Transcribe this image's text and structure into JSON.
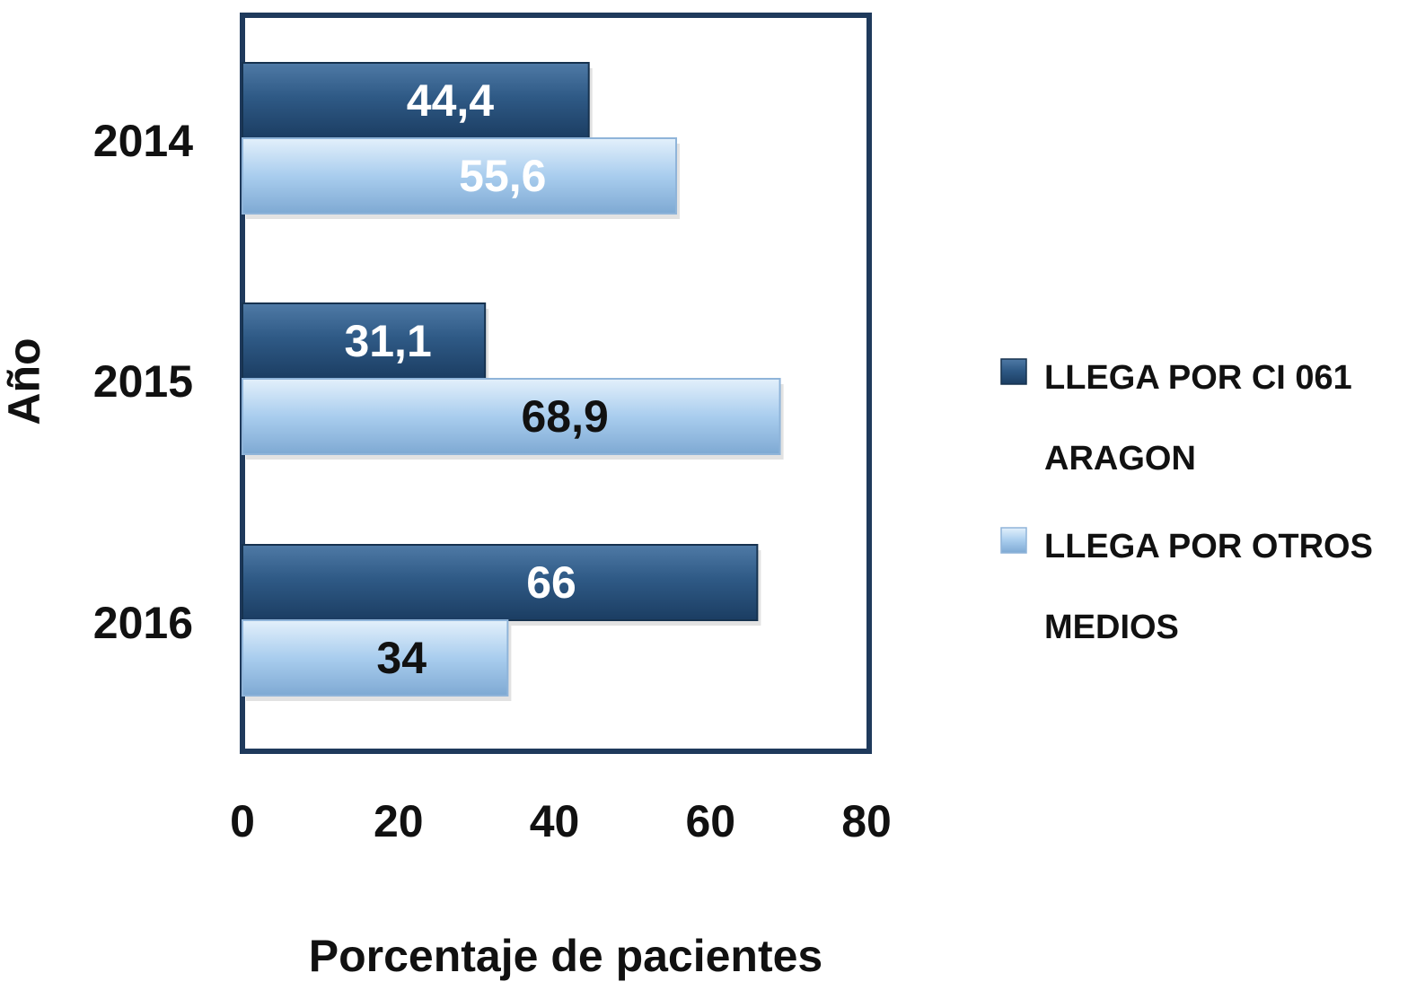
{
  "chart_data": {
    "type": "bar",
    "orientation": "horizontal",
    "categories": [
      "2014",
      "2015",
      "2016"
    ],
    "series": [
      {
        "name": "LLEGA POR CI 061 ARAGON",
        "legend_lines": [
          "LLEGA POR CI 061",
          "ARAGON"
        ],
        "values": [
          44.4,
          31.1,
          66
        ],
        "labels": [
          "44,4",
          "31,1",
          "66"
        ],
        "color": "#2d5580",
        "label_colors": [
          "#ffffff",
          "#ffffff",
          "#ffffff"
        ]
      },
      {
        "name": "LLEGA POR OTROS MEDIOS",
        "legend_lines": [
          "LLEGA POR OTROS",
          "MEDIOS"
        ],
        "values": [
          55.6,
          68.9,
          34
        ],
        "labels": [
          "55,6",
          "68,9",
          "34"
        ],
        "color": "#a9cdee",
        "label_colors": [
          "#ffffff",
          "#111111",
          "#111111"
        ]
      }
    ],
    "xlabel": "Porcentaje de pacientes",
    "ylabel": "Año",
    "xlim": [
      0,
      80
    ],
    "xticks": [
      "0",
      "20",
      "40",
      "60",
      "80"
    ],
    "grid": false,
    "legend_position": "right"
  }
}
